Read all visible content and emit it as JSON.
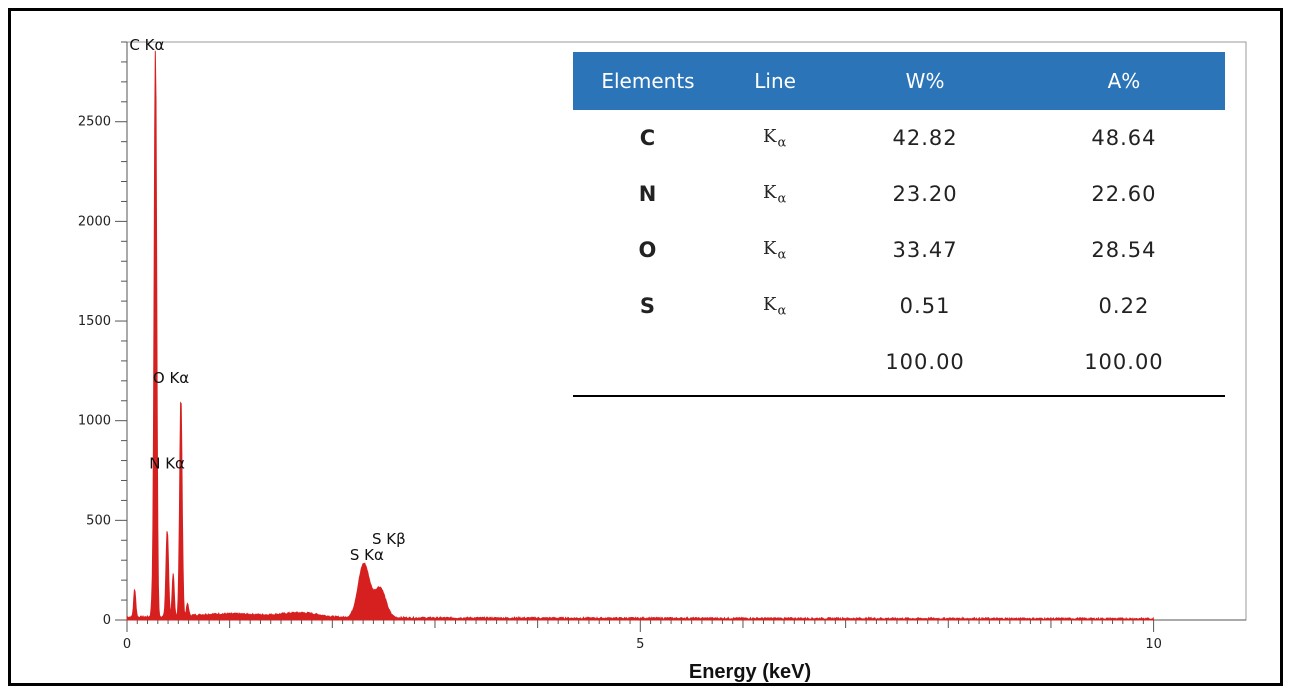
{
  "chart_data": {
    "type": "line",
    "xlabel": "Energy (keV)",
    "ylabel": "",
    "xlim": [
      0,
      10.9
    ],
    "ylim": [
      0,
      2900
    ],
    "x_ticks": [
      0,
      5,
      10
    ],
    "y_ticks": [
      0,
      500,
      1000,
      1500,
      2000,
      2500
    ],
    "grid": false,
    "series_color": "#d62020",
    "peaks": [
      {
        "label": "C Kα",
        "x": 0.277,
        "y": 2820
      },
      {
        "label": "N Kα",
        "x": 0.392,
        "y": 430
      },
      {
        "label": "O Kα",
        "x": 0.525,
        "y": 1100
      },
      {
        "label": "S Kα",
        "x": 2.307,
        "y": 270
      },
      {
        "label": "S Kβ",
        "x": 2.464,
        "y": 150
      }
    ]
  },
  "table": {
    "headers": [
      "Elements",
      "Line",
      "W%",
      "A%"
    ],
    "rows": [
      {
        "element": "C",
        "line_base": "K",
        "line_sub": "α",
        "w": "42.82",
        "a": "48.64"
      },
      {
        "element": "N",
        "line_base": "K",
        "line_sub": "α",
        "w": "23.20",
        "a": "22.60"
      },
      {
        "element": "O",
        "line_base": "K",
        "line_sub": "α",
        "w": "33.47",
        "a": "28.54"
      },
      {
        "element": "S",
        "line_base": "K",
        "line_sub": "α",
        "w": "0.51",
        "a": "0.22"
      }
    ],
    "total": {
      "w": "100.00",
      "a": "100.00"
    }
  }
}
